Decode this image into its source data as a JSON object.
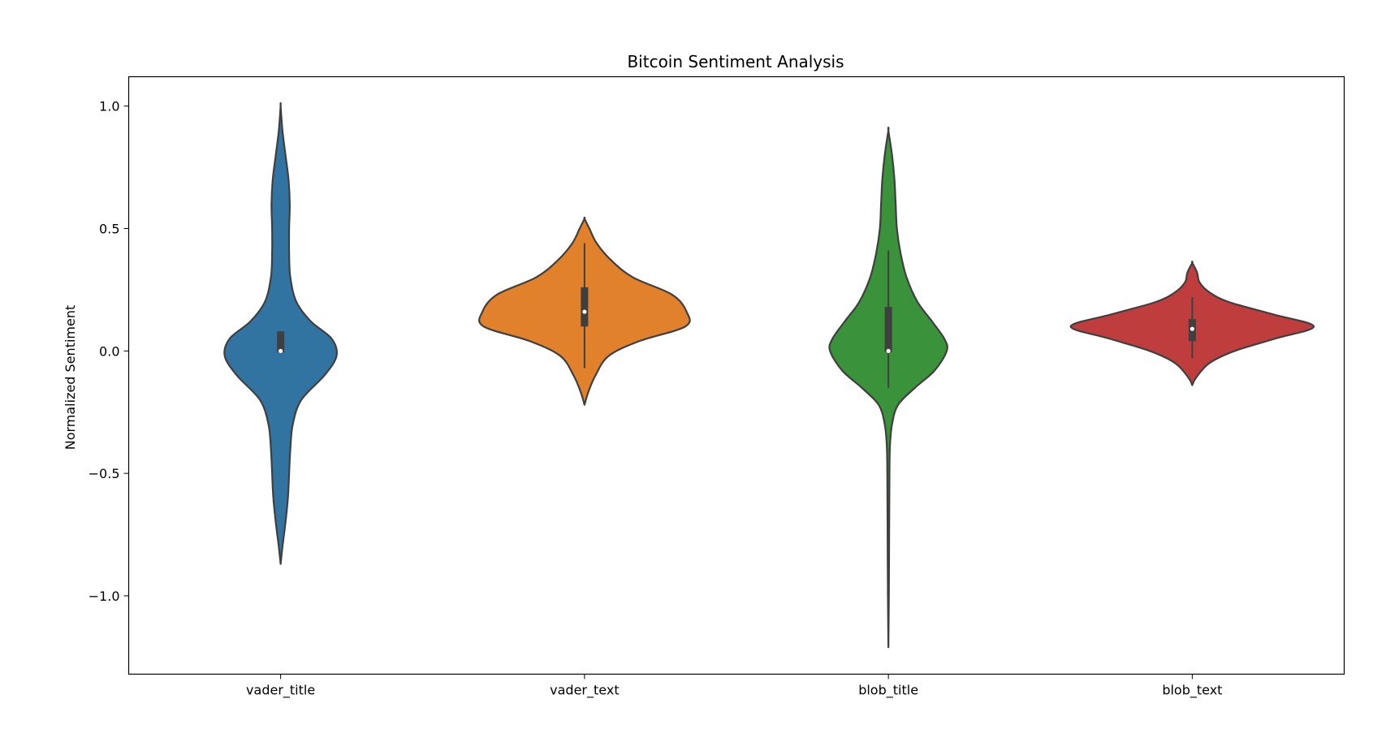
{
  "chart_data": {
    "type": "violin",
    "title": "Bitcoin Sentiment Analysis",
    "xlabel": "",
    "ylabel": "Normalized Sentiment",
    "ylim": [
      -1.32,
      1.12
    ],
    "yticks": [
      1.0,
      0.5,
      0.0,
      -0.5,
      -1.0
    ],
    "ytick_labels": [
      "1.0",
      "0.5",
      "0.0",
      "−0.5",
      "−1.0"
    ],
    "categories": [
      "vader_title",
      "vader_text",
      "blob_title",
      "blob_text"
    ],
    "grid": false,
    "series": [
      {
        "category": "vader_title",
        "color": "#3274a1",
        "min": -0.87,
        "max": 1.0,
        "q1": -0.005,
        "median": 0.0,
        "q3": 0.08,
        "whisker_low": -0.005,
        "whisker_high": 0.08,
        "density": [
          [
            -0.87,
            0.0
          ],
          [
            -0.8,
            0.015
          ],
          [
            -0.7,
            0.04
          ],
          [
            -0.6,
            0.06
          ],
          [
            -0.5,
            0.07
          ],
          [
            -0.4,
            0.08
          ],
          [
            -0.3,
            0.1
          ],
          [
            -0.2,
            0.17
          ],
          [
            -0.1,
            0.36
          ],
          [
            -0.02,
            0.46
          ],
          [
            0.05,
            0.42
          ],
          [
            0.12,
            0.25
          ],
          [
            0.2,
            0.13
          ],
          [
            0.3,
            0.08
          ],
          [
            0.4,
            0.07
          ],
          [
            0.5,
            0.07
          ],
          [
            0.6,
            0.075
          ],
          [
            0.7,
            0.065
          ],
          [
            0.8,
            0.04
          ],
          [
            0.9,
            0.015
          ],
          [
            1.0,
            0.0
          ]
        ]
      },
      {
        "category": "vader_text",
        "color": "#e1812c",
        "min": -0.22,
        "max": 0.54,
        "q1": 0.1,
        "median": 0.16,
        "q3": 0.26,
        "whisker_low": -0.07,
        "whisker_high": 0.44,
        "density": [
          [
            -0.22,
            0.0
          ],
          [
            -0.17,
            0.03
          ],
          [
            -0.1,
            0.09
          ],
          [
            -0.02,
            0.2
          ],
          [
            0.04,
            0.45
          ],
          [
            0.1,
            0.83
          ],
          [
            0.16,
            0.84
          ],
          [
            0.23,
            0.72
          ],
          [
            0.3,
            0.4
          ],
          [
            0.37,
            0.22
          ],
          [
            0.44,
            0.1
          ],
          [
            0.5,
            0.04
          ],
          [
            0.54,
            0.0
          ]
        ]
      },
      {
        "category": "blob_title",
        "color": "#3a923a",
        "min": -1.21,
        "max": 0.9,
        "q1": -0.005,
        "median": 0.0,
        "q3": 0.18,
        "whisker_low": -0.15,
        "whisker_high": 0.41,
        "density": [
          [
            -1.21,
            0.0
          ],
          [
            -1.0,
            0.004
          ],
          [
            -0.8,
            0.006
          ],
          [
            -0.6,
            0.008
          ],
          [
            -0.4,
            0.012
          ],
          [
            -0.3,
            0.03
          ],
          [
            -0.22,
            0.08
          ],
          [
            -0.15,
            0.22
          ],
          [
            -0.08,
            0.38
          ],
          [
            0.0,
            0.48
          ],
          [
            0.05,
            0.46
          ],
          [
            0.12,
            0.36
          ],
          [
            0.2,
            0.24
          ],
          [
            0.3,
            0.15
          ],
          [
            0.4,
            0.1
          ],
          [
            0.5,
            0.07
          ],
          [
            0.6,
            0.06
          ],
          [
            0.7,
            0.05
          ],
          [
            0.8,
            0.03
          ],
          [
            0.9,
            0.0
          ]
        ]
      },
      {
        "category": "blob_text",
        "color": "#c03d3e",
        "min": -0.14,
        "max": 0.36,
        "q1": 0.04,
        "median": 0.09,
        "q3": 0.13,
        "whisker_low": -0.03,
        "whisker_high": 0.22,
        "density": [
          [
            -0.14,
            0.0
          ],
          [
            -0.11,
            0.03
          ],
          [
            -0.05,
            0.14
          ],
          [
            0.0,
            0.35
          ],
          [
            0.05,
            0.68
          ],
          [
            0.1,
            1.0
          ],
          [
            0.15,
            0.66
          ],
          [
            0.2,
            0.3
          ],
          [
            0.24,
            0.14
          ],
          [
            0.28,
            0.06
          ],
          [
            0.32,
            0.04
          ],
          [
            0.36,
            0.0
          ]
        ]
      }
    ]
  }
}
